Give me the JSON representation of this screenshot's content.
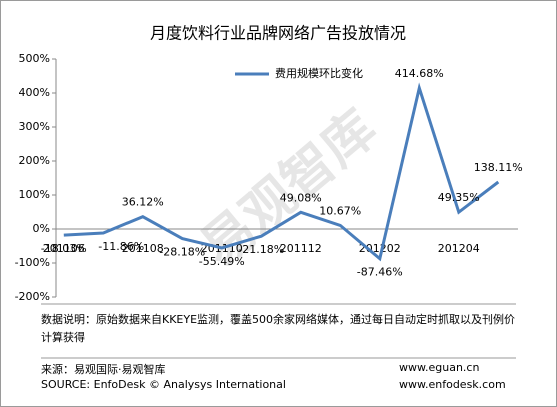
{
  "chart_data": {
    "type": "line",
    "title": "月度饮料行业品牌网络广告投放情况",
    "categories": [
      "201106",
      null,
      "201108",
      null,
      "201110",
      null,
      "201112",
      null,
      "201202",
      null,
      "201204",
      null
    ],
    "series": [
      {
        "name": "费用规模环比变化",
        "color": "#4a7ebb",
        "values": [
          -18.03,
          -11.86,
          36.12,
          -28.18,
          -55.49,
          -21.18,
          49.08,
          10.67,
          -87.46,
          414.68,
          49.35,
          138.11
        ],
        "value_labels": [
          "-18.03%",
          "-11.86%",
          "36.12%",
          "-28.18%",
          "-55.49%",
          "-21.18%",
          "49.08%",
          "10.67%",
          "-87.46%",
          "414.68%",
          "49.35%",
          "138.11%"
        ]
      }
    ],
    "ylim": [
      -200,
      500
    ],
    "yticks": [
      {
        "value": -200,
        "label": "-200%"
      },
      {
        "value": -100,
        "label": "-100%"
      },
      {
        "value": 0,
        "label": "0%"
      },
      {
        "value": 100,
        "label": "100%"
      },
      {
        "value": 200,
        "label": "200%"
      },
      {
        "value": 300,
        "label": "300%"
      },
      {
        "value": 400,
        "label": "400%"
      },
      {
        "value": 500,
        "label": "500%"
      }
    ],
    "grid": false,
    "legend": "top",
    "watermark": "易观智库",
    "note": "数据说明：原始数据来自KKEYE监测，覆盖500余家网络媒体，通过每日自动定时抓取以及刊例价计算获得",
    "source_cn": "来源：易观国际·易观智库",
    "source_en": "SOURCE: EnfoDesk © Analysys International",
    "url1": "www.eguan.cn",
    "url2": "www.enfodesk.com"
  }
}
